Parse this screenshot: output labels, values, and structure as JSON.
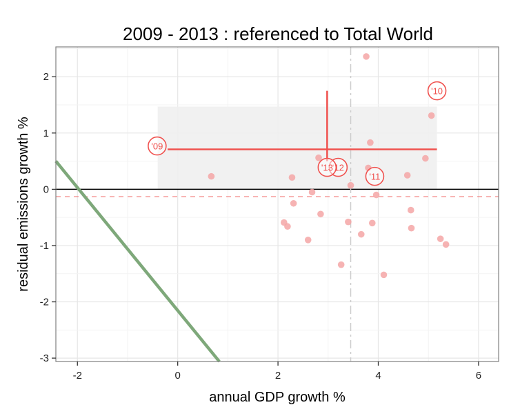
{
  "chart_data": {
    "type": "scatter",
    "title": "2009 - 2013 : referenced to Total World",
    "xlabel": "annual GDP growth %",
    "ylabel": "residual emissions growth %",
    "xlim": [
      -2.43,
      6.4
    ],
    "ylim": [
      -3.06,
      2.53
    ],
    "x_ticks": [
      -2,
      0,
      2,
      4,
      6
    ],
    "y_ticks": [
      -3,
      -2,
      -1,
      0,
      1,
      2
    ],
    "x_tick_labels": [
      "-2",
      "0",
      "2",
      "4",
      "6"
    ],
    "y_tick_labels": [
      "-3",
      "-2",
      "-1",
      "0",
      "1",
      "2"
    ],
    "grid": true,
    "colors": {
      "points": "#f4a6a6",
      "accent": "#f0524f",
      "trend_line": "#7ea87a",
      "shade": "#f0f0f0",
      "vref": "#cccccc"
    },
    "points": [
      {
        "x": 0.67,
        "y": 0.23
      },
      {
        "x": 2.28,
        "y": 0.21
      },
      {
        "x": 2.68,
        "y": -0.05
      },
      {
        "x": 2.81,
        "y": 0.56
      },
      {
        "x": 2.31,
        "y": -0.25
      },
      {
        "x": 3.84,
        "y": 0.83
      },
      {
        "x": 4.94,
        "y": 0.55
      },
      {
        "x": 4.58,
        "y": 0.25
      },
      {
        "x": 3.8,
        "y": 0.38
      },
      {
        "x": 3.45,
        "y": 0.07
      },
      {
        "x": 3.96,
        "y": -0.1
      },
      {
        "x": 5.06,
        "y": 1.31
      },
      {
        "x": 3.76,
        "y": 2.36
      },
      {
        "x": 2.12,
        "y": -0.59
      },
      {
        "x": 2.19,
        "y": -0.66
      },
      {
        "x": 2.85,
        "y": -0.44
      },
      {
        "x": 2.6,
        "y": -0.9
      },
      {
        "x": 3.4,
        "y": -0.58
      },
      {
        "x": 3.66,
        "y": -0.8
      },
      {
        "x": 3.88,
        "y": -0.6
      },
      {
        "x": 3.26,
        "y": -1.34
      },
      {
        "x": 4.11,
        "y": -1.52
      },
      {
        "x": 4.65,
        "y": -0.37
      },
      {
        "x": 4.66,
        "y": -0.69
      },
      {
        "x": 5.24,
        "y": -0.88
      },
      {
        "x": 5.35,
        "y": -0.98
      }
    ],
    "year_labels": [
      {
        "label": "'09",
        "x": -0.41,
        "y": 0.77
      },
      {
        "label": "'10",
        "x": 5.17,
        "y": 1.75
      },
      {
        "label": "'11",
        "x": 3.93,
        "y": 0.23
      },
      {
        "label": "'12",
        "x": 3.2,
        "y": 0.39
      },
      {
        "label": "'13",
        "x": 2.98,
        "y": 0.39
      }
    ],
    "shaded_range": {
      "x0": -0.4,
      "x1": 5.17,
      "y0": 0,
      "y1": 1.47
    },
    "mean_hline": {
      "y": 0.71,
      "x0": -0.2,
      "x1": 5.17
    },
    "mean_vline": {
      "x": 2.98,
      "y0": 0.5,
      "y1": 1.75
    },
    "zero_line_y": 0,
    "ref_dashed_hline_y": -0.13,
    "ref_dashed_vline_x": 3.45,
    "trend_line": {
      "x0": -2.43,
      "y0": 0.5,
      "x1": 0.83,
      "y1": -3.07
    }
  }
}
